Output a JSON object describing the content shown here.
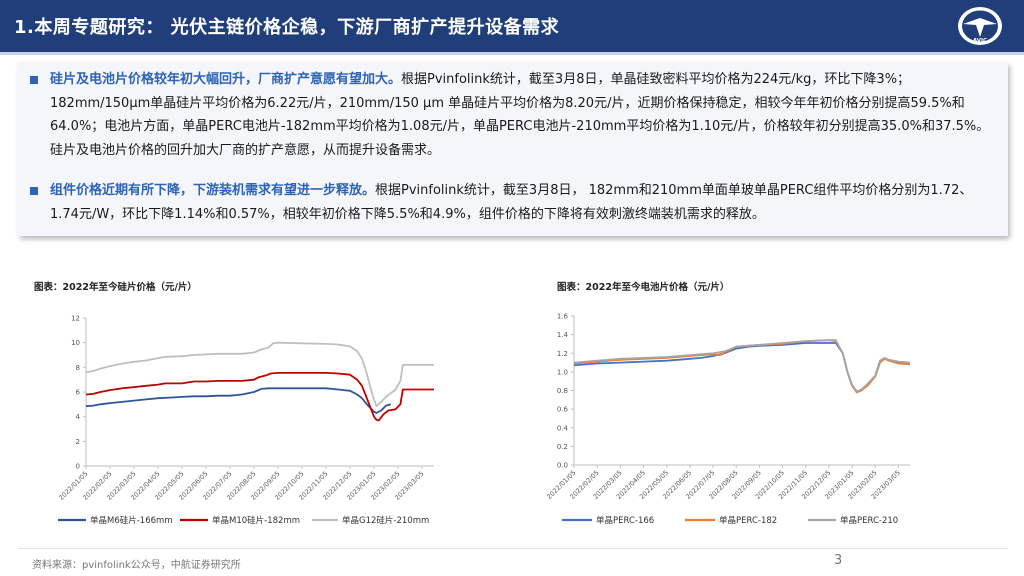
{
  "header": {
    "title": "1.本周专题研究： 光伏主链价格企稳，下游厂商扩产提升设备需求",
    "logo_text": "AVIC"
  },
  "summary": {
    "bullets": [
      {
        "lead": "硅片及电池片价格较年初大幅回升，厂商扩产意愿有望加大。",
        "text": "根据Pvinfolink统计，截至3月8日，单晶硅致密料平均价格为224元/kg，环比下降3%；182mm/150μm单晶硅片平均价格为6.22元/片，210mm/150 μm 单晶硅片平均价格为8.20元/片，近期价格保持稳定，相较今年年初价格分别提高59.5%和64.0%；电池片方面，单晶PERC电池片-182mm平均价格为1.08元/片，单晶PERC电池片-210mm平均价格为1.10元/片，价格较年初分别提高35.0%和37.5%。硅片及电池片价格的回升加大厂商的扩产意愿，从而提升设备需求。"
      },
      {
        "lead": "组件价格近期有所下降，下游装机需求有望进一步释放。",
        "text": "根据Pvinfolink统计，截至3月8日， 182mm和210mm单面单玻单晶PERC组件平均价格分别为1.72、1.74元/W，环比下降1.14%和0.57%，相较年初价格下降5.5%和4.9%，组件价格的下降将有效刺激终端装机需求的释放。"
      }
    ]
  },
  "chart_data": [
    {
      "type": "line",
      "title": "图表：2022年至今硅片价格（元/片）",
      "xlabel": "",
      "ylabel": "",
      "ylim": [
        0,
        12
      ],
      "yticks": [
        "0",
        "2",
        "4",
        "6",
        "8",
        "10",
        "12"
      ],
      "x_tick_labels": [
        "2022/01/05",
        "2022/02/05",
        "2022/03/05",
        "2022/04/05",
        "2022/05/05",
        "2022/06/05",
        "2022/07/05",
        "2022/08/05",
        "2022/09/05",
        "2022/10/05",
        "2022/11/05",
        "2022/12/05",
        "2023/01/05",
        "2023/02/05",
        "2023/03/05"
      ],
      "legend_position": "bottom",
      "grid": false,
      "series": [
        {
          "name": "单晶M6硅片-166mm",
          "color": "#2f5597",
          "points": [
            [
              0,
              4.85
            ],
            [
              0.3,
              4.9
            ],
            [
              0.6,
              5.0
            ],
            [
              1.0,
              5.1
            ],
            [
              1.5,
              5.2
            ],
            [
              2.0,
              5.3
            ],
            [
              2.5,
              5.4
            ],
            [
              3.0,
              5.5
            ],
            [
              3.5,
              5.55
            ],
            [
              4.0,
              5.6
            ],
            [
              4.5,
              5.65
            ],
            [
              5.0,
              5.65
            ],
            [
              5.5,
              5.7
            ],
            [
              6.0,
              5.7
            ],
            [
              6.5,
              5.8
            ],
            [
              7.0,
              6.0
            ],
            [
              7.3,
              6.25
            ],
            [
              7.6,
              6.3
            ],
            [
              8.0,
              6.3
            ],
            [
              9.0,
              6.3
            ],
            [
              10.0,
              6.3
            ],
            [
              10.5,
              6.2
            ],
            [
              11.0,
              6.1
            ],
            [
              11.3,
              5.8
            ],
            [
              11.5,
              5.5
            ],
            [
              11.7,
              5.0
            ],
            [
              11.9,
              4.6
            ],
            [
              12.0,
              4.4
            ],
            [
              12.1,
              4.3
            ],
            [
              12.3,
              4.5
            ],
            [
              12.5,
              4.9
            ],
            [
              12.7,
              5.0
            ]
          ]
        },
        {
          "name": "单晶M10硅片-182mm",
          "color": "#c00000",
          "points": [
            [
              0,
              5.8
            ],
            [
              0.3,
              5.85
            ],
            [
              0.6,
              6.0
            ],
            [
              1.0,
              6.15
            ],
            [
              1.5,
              6.3
            ],
            [
              2.0,
              6.4
            ],
            [
              2.5,
              6.5
            ],
            [
              3.0,
              6.6
            ],
            [
              3.3,
              6.7
            ],
            [
              4.0,
              6.7
            ],
            [
              4.5,
              6.85
            ],
            [
              5.0,
              6.85
            ],
            [
              5.5,
              6.9
            ],
            [
              6.0,
              6.9
            ],
            [
              6.5,
              6.9
            ],
            [
              7.0,
              7.0
            ],
            [
              7.2,
              7.2
            ],
            [
              7.5,
              7.35
            ],
            [
              7.7,
              7.5
            ],
            [
              8.0,
              7.55
            ],
            [
              9.0,
              7.55
            ],
            [
              10.0,
              7.55
            ],
            [
              10.5,
              7.5
            ],
            [
              11.0,
              7.4
            ],
            [
              11.3,
              7.0
            ],
            [
              11.5,
              6.5
            ],
            [
              11.7,
              5.5
            ],
            [
              11.9,
              4.5
            ],
            [
              12.0,
              4.0
            ],
            [
              12.1,
              3.75
            ],
            [
              12.2,
              3.7
            ],
            [
              12.4,
              4.2
            ],
            [
              12.6,
              4.5
            ],
            [
              12.9,
              4.6
            ],
            [
              13.1,
              5.0
            ],
            [
              13.2,
              6.2
            ],
            [
              14.0,
              6.2
            ],
            [
              14.5,
              6.2
            ]
          ]
        },
        {
          "name": "单晶G12硅片-210mm",
          "color": "#bfbfbf",
          "points": [
            [
              0,
              7.6
            ],
            [
              0.3,
              7.7
            ],
            [
              0.6,
              7.9
            ],
            [
              1.0,
              8.1
            ],
            [
              1.5,
              8.3
            ],
            [
              2.0,
              8.45
            ],
            [
              2.5,
              8.55
            ],
            [
              3.0,
              8.75
            ],
            [
              3.3,
              8.85
            ],
            [
              4.0,
              8.9
            ],
            [
              4.5,
              9.0
            ],
            [
              5.0,
              9.05
            ],
            [
              5.5,
              9.1
            ],
            [
              6.0,
              9.1
            ],
            [
              6.5,
              9.1
            ],
            [
              7.0,
              9.2
            ],
            [
              7.3,
              9.45
            ],
            [
              7.6,
              9.6
            ],
            [
              7.8,
              9.95
            ],
            [
              8.0,
              10.0
            ],
            [
              9.0,
              9.95
            ],
            [
              10.0,
              9.9
            ],
            [
              10.5,
              9.85
            ],
            [
              11.0,
              9.7
            ],
            [
              11.3,
              9.3
            ],
            [
              11.5,
              8.7
            ],
            [
              11.7,
              7.5
            ],
            [
              11.9,
              6.0
            ],
            [
              12.0,
              5.4
            ],
            [
              12.1,
              4.85
            ],
            [
              12.3,
              5.2
            ],
            [
              12.5,
              5.6
            ],
            [
              12.7,
              5.9
            ],
            [
              12.9,
              6.2
            ],
            [
              13.1,
              6.9
            ],
            [
              13.2,
              8.2
            ],
            [
              14.0,
              8.2
            ],
            [
              14.5,
              8.2
            ]
          ]
        }
      ]
    },
    {
      "type": "line",
      "title": "图表：2022年至今电池片价格（元/片）",
      "xlabel": "",
      "ylabel": "",
      "ylim": [
        0,
        1.6
      ],
      "yticks": [
        "0.0",
        "0.2",
        "0.4",
        "0.6",
        "0.8",
        "1.0",
        "1.2",
        "1.4",
        "1.6"
      ],
      "x_tick_labels": [
        "2022/01/05",
        "2022/02/05",
        "2022/03/05",
        "2022/04/05",
        "2022/05/05",
        "2022/06/05",
        "2022/07/05",
        "2022/08/05",
        "2022/09/05",
        "2022/10/05",
        "2022/11/05",
        "2022/12/05",
        "2023/01/05",
        "2023/02/05",
        "2023/03/05"
      ],
      "legend_position": "bottom",
      "grid": false,
      "series": [
        {
          "name": "单晶PERC-166",
          "color": "#4472c4",
          "points": [
            [
              0,
              1.07
            ],
            [
              0.5,
              1.08
            ],
            [
              1.0,
              1.09
            ],
            [
              2.0,
              1.1
            ],
            [
              3.0,
              1.11
            ],
            [
              4.0,
              1.12
            ],
            [
              5.0,
              1.14
            ],
            [
              5.5,
              1.15
            ],
            [
              6.0,
              1.17
            ],
            [
              6.5,
              1.2
            ],
            [
              7.0,
              1.25
            ],
            [
              7.5,
              1.27
            ],
            [
              8.0,
              1.28
            ],
            [
              9.0,
              1.29
            ],
            [
              10.0,
              1.31
            ],
            [
              11.0,
              1.31
            ],
            [
              11.3,
              1.31
            ],
            [
              11.6,
              1.2
            ],
            [
              11.8,
              1.0
            ],
            [
              12.0,
              0.85
            ],
            [
              12.2,
              0.79
            ],
            [
              12.4,
              0.8
            ],
            [
              12.7,
              0.88
            ],
            [
              13.0,
              0.95
            ],
            [
              13.2,
              1.1
            ],
            [
              13.4,
              1.14
            ],
            [
              13.6,
              1.12
            ],
            [
              14.0,
              1.1
            ],
            [
              14.5,
              1.08
            ]
          ]
        },
        {
          "name": "单晶PERC-182",
          "color": "#ed7d31",
          "points": [
            [
              0,
              1.09
            ],
            [
              0.5,
              1.1
            ],
            [
              1.0,
              1.11
            ],
            [
              2.0,
              1.13
            ],
            [
              3.0,
              1.14
            ],
            [
              4.0,
              1.15
            ],
            [
              5.0,
              1.17
            ],
            [
              5.5,
              1.18
            ],
            [
              6.0,
              1.19
            ],
            [
              6.3,
              1.18
            ],
            [
              6.6,
              1.22
            ],
            [
              7.0,
              1.27
            ],
            [
              7.5,
              1.28
            ],
            [
              8.0,
              1.29
            ],
            [
              9.0,
              1.3
            ],
            [
              10.0,
              1.33
            ],
            [
              11.0,
              1.34
            ],
            [
              11.3,
              1.33
            ],
            [
              11.6,
              1.2
            ],
            [
              11.8,
              1.0
            ],
            [
              12.0,
              0.85
            ],
            [
              12.2,
              0.78
            ],
            [
              12.4,
              0.8
            ],
            [
              12.7,
              0.86
            ],
            [
              13.0,
              0.95
            ],
            [
              13.2,
              1.1
            ],
            [
              13.4,
              1.14
            ],
            [
              13.6,
              1.12
            ],
            [
              14.0,
              1.09
            ],
            [
              14.5,
              1.08
            ]
          ]
        },
        {
          "name": "单晶PERC-210",
          "color": "#a5a5a5",
          "points": [
            [
              0,
              1.1
            ],
            [
              0.5,
              1.11
            ],
            [
              1.0,
              1.12
            ],
            [
              2.0,
              1.14
            ],
            [
              3.0,
              1.15
            ],
            [
              4.0,
              1.16
            ],
            [
              5.0,
              1.18
            ],
            [
              5.5,
              1.19
            ],
            [
              6.0,
              1.2
            ],
            [
              6.5,
              1.22
            ],
            [
              7.0,
              1.27
            ],
            [
              7.5,
              1.28
            ],
            [
              8.0,
              1.29
            ],
            [
              9.0,
              1.31
            ],
            [
              10.0,
              1.33
            ],
            [
              11.0,
              1.34
            ],
            [
              11.3,
              1.34
            ],
            [
              11.6,
              1.2
            ],
            [
              11.8,
              1.0
            ],
            [
              12.0,
              0.86
            ],
            [
              12.2,
              0.79
            ],
            [
              12.4,
              0.81
            ],
            [
              12.7,
              0.88
            ],
            [
              13.0,
              0.96
            ],
            [
              13.2,
              1.12
            ],
            [
              13.4,
              1.15
            ],
            [
              13.6,
              1.13
            ],
            [
              14.0,
              1.11
            ],
            [
              14.5,
              1.1
            ]
          ]
        }
      ]
    }
  ],
  "footer": {
    "source": "资料来源：pvinfolink公众号，中航证券研究所",
    "page_number": "3"
  }
}
